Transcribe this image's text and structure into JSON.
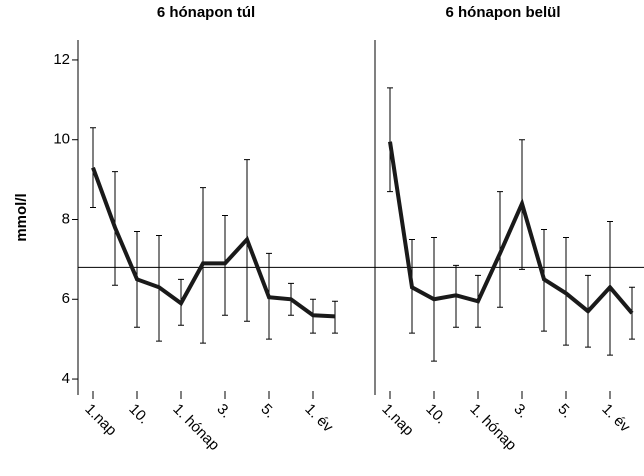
{
  "chart_data": [
    {
      "type": "line",
      "title": "6 hónapon túl",
      "ylabel": "mmol/l",
      "categories": [
        "1.nap",
        null,
        "10.",
        null,
        "1. hónap",
        null,
        "3.",
        null,
        "5.",
        null,
        "1. év",
        null
      ],
      "series": [
        {
          "color": "#1a1a1a",
          "values": [
            9.3,
            7.8,
            6.5,
            6.3,
            5.9,
            6.9,
            6.9,
            7.5,
            6.05,
            6.0,
            5.6,
            5.57
          ],
          "low": [
            8.3,
            6.35,
            5.3,
            4.95,
            5.35,
            4.9,
            5.6,
            5.45,
            5.0,
            5.6,
            5.15,
            5.15
          ],
          "high": [
            10.3,
            9.2,
            7.7,
            7.6,
            6.5,
            8.8,
            8.1,
            9.5,
            7.15,
            6.4,
            6.0,
            5.95
          ]
        }
      ],
      "hline": 6.8,
      "ylim": [
        3.6,
        12.5
      ],
      "yticks": [
        4,
        6,
        8,
        10,
        12
      ]
    },
    {
      "type": "line",
      "title": "6 hónapon belül",
      "categories": [
        "1.nap",
        null,
        "10.",
        null,
        "1. hónap",
        null,
        "3.",
        null,
        "5.",
        null,
        "1. év",
        null
      ],
      "series": [
        {
          "color": "#1a1a1a",
          "values": [
            9.95,
            6.3,
            6.0,
            6.1,
            5.95,
            7.15,
            8.4,
            6.5,
            6.15,
            5.7,
            6.3,
            5.65
          ],
          "low": [
            8.7,
            5.15,
            4.45,
            5.3,
            5.3,
            5.8,
            6.75,
            5.2,
            4.85,
            4.8,
            4.6,
            5.0
          ],
          "high": [
            11.3,
            7.5,
            7.55,
            6.85,
            6.6,
            8.7,
            10.0,
            7.75,
            7.55,
            6.6,
            7.95,
            6.3
          ]
        }
      ],
      "hline": 6.8,
      "ylim": [
        3.6,
        12.5
      ]
    }
  ]
}
